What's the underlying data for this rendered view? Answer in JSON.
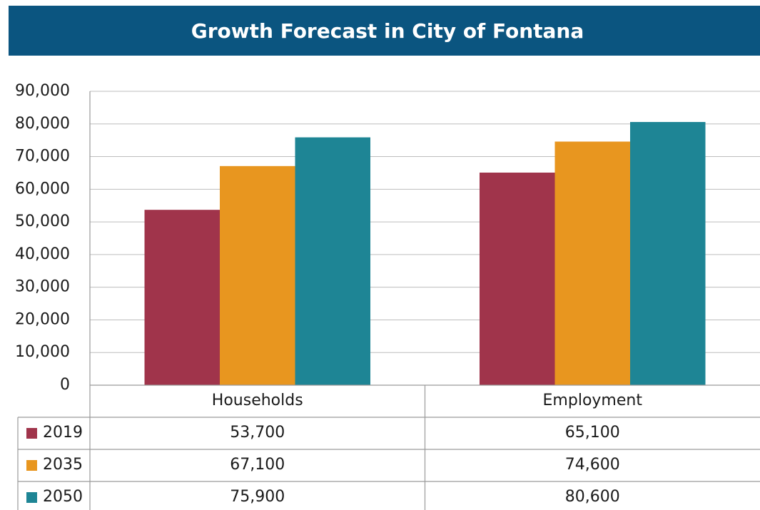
{
  "chart_data": {
    "type": "bar",
    "title": "Growth Forecast in City of Fontana",
    "categories": [
      "Households",
      "Employment"
    ],
    "series": [
      {
        "name": "2019",
        "color": "#a0344b",
        "values": [
          53700,
          65100
        ],
        "value_labels": [
          "53,700",
          "65,100"
        ]
      },
      {
        "name": "2035",
        "color": "#e8961f",
        "values": [
          67100,
          74600
        ],
        "value_labels": [
          "67,100",
          "74,600"
        ]
      },
      {
        "name": "2050",
        "color": "#1e8595",
        "values": [
          75900,
          80600
        ],
        "value_labels": [
          "75,900",
          "80,600"
        ]
      }
    ],
    "ylim": [
      0,
      90000
    ],
    "yticks": [
      0,
      {
        "value": 10000,
        "label": "10,000"
      },
      {
        "value": 20000,
        "label": "20,000"
      },
      {
        "value": 30000,
        "label": "30,000"
      },
      {
        "value": 40000,
        "label": "40,000"
      },
      {
        "value": 50000,
        "label": "50,000"
      },
      {
        "value": 60000,
        "label": "60,000"
      },
      {
        "value": 70000,
        "label": "70,000"
      },
      {
        "value": 80000,
        "label": "80,000"
      },
      {
        "value": 90000,
        "label": "90,000"
      }
    ],
    "grid": true
  }
}
